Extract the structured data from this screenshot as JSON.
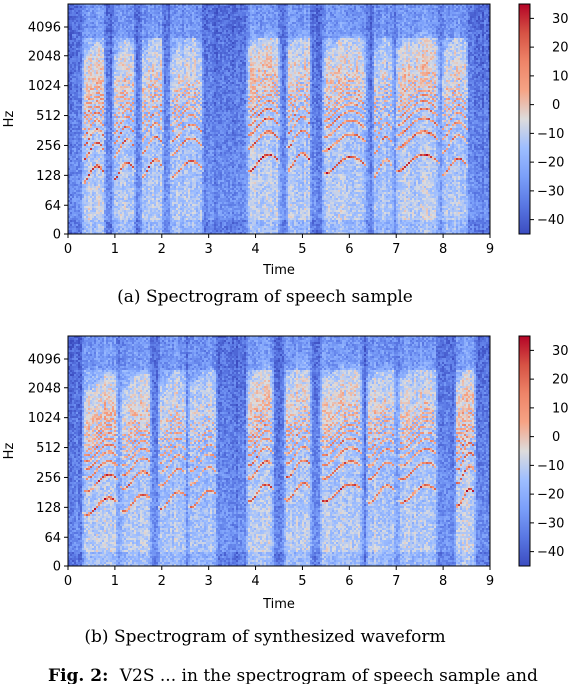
{
  "figure_caption": {
    "label": "Fig. 2:",
    "text": "V2S ... in the spectrogram of speech sample and"
  },
  "chart_data": [
    {
      "type": "heatmap",
      "caption": "(a) Spectrogram of speech sample",
      "xlabel": "Time",
      "ylabel": "Hz",
      "xlim": [
        0,
        9
      ],
      "x_ticks": [
        "0",
        "1",
        "2",
        "3",
        "4",
        "5",
        "6",
        "7",
        "8",
        "9"
      ],
      "y_scale": "log2",
      "y_ticks": [
        "0",
        "64",
        "128",
        "256",
        "512",
        "1024",
        "2048",
        "4096"
      ],
      "colorbar": {
        "min": -45,
        "max": 35,
        "ticks": [
          "30",
          "20",
          "10",
          "0",
          "−10",
          "−20",
          "−30",
          "−40"
        ],
        "colormap": "coolwarm"
      },
      "segments": [
        [
          0.3,
          0.8,
          100,
          1.0
        ],
        [
          0.95,
          1.45,
          110,
          0.9
        ],
        [
          1.55,
          2.05,
          120,
          0.9
        ],
        [
          2.15,
          2.9,
          115,
          0.85
        ],
        [
          3.8,
          4.55,
          140,
          1.0
        ],
        [
          4.65,
          5.2,
          145,
          0.9
        ],
        [
          5.4,
          6.4,
          130,
          0.95
        ],
        [
          6.5,
          6.95,
          120,
          0.8
        ],
        [
          6.95,
          7.95,
          140,
          0.95
        ],
        [
          7.95,
          8.55,
          125,
          0.9
        ]
      ]
    },
    {
      "type": "heatmap",
      "caption": "(b) Spectrogram of synthesized waveform",
      "xlabel": "Time",
      "ylabel": "Hz",
      "xlim": [
        0,
        9
      ],
      "x_ticks": [
        "0",
        "1",
        "2",
        "3",
        "4",
        "5",
        "6",
        "7",
        "8",
        "9"
      ],
      "y_scale": "log2",
      "y_ticks": [
        "0",
        "64",
        "128",
        "256",
        "512",
        "1024",
        "2048",
        "4096"
      ],
      "colorbar": {
        "min": -45,
        "max": 35,
        "ticks": [
          "30",
          "20",
          "10",
          "0",
          "−10",
          "−20",
          "−30",
          "−40"
        ],
        "colormap": "coolwarm"
      },
      "segments": [
        [
          0.3,
          1.1,
          100,
          1.0
        ],
        [
          1.1,
          1.8,
          110,
          0.9
        ],
        [
          1.9,
          2.55,
          120,
          0.85
        ],
        [
          2.55,
          3.2,
          125,
          0.8
        ],
        [
          3.8,
          4.4,
          150,
          0.95
        ],
        [
          4.6,
          5.2,
          155,
          0.9
        ],
        [
          5.35,
          6.3,
          150,
          0.95
        ],
        [
          6.35,
          7.0,
          145,
          0.9
        ],
        [
          7.0,
          7.9,
          145,
          0.9
        ],
        [
          8.25,
          8.7,
          130,
          1.0
        ]
      ]
    }
  ]
}
